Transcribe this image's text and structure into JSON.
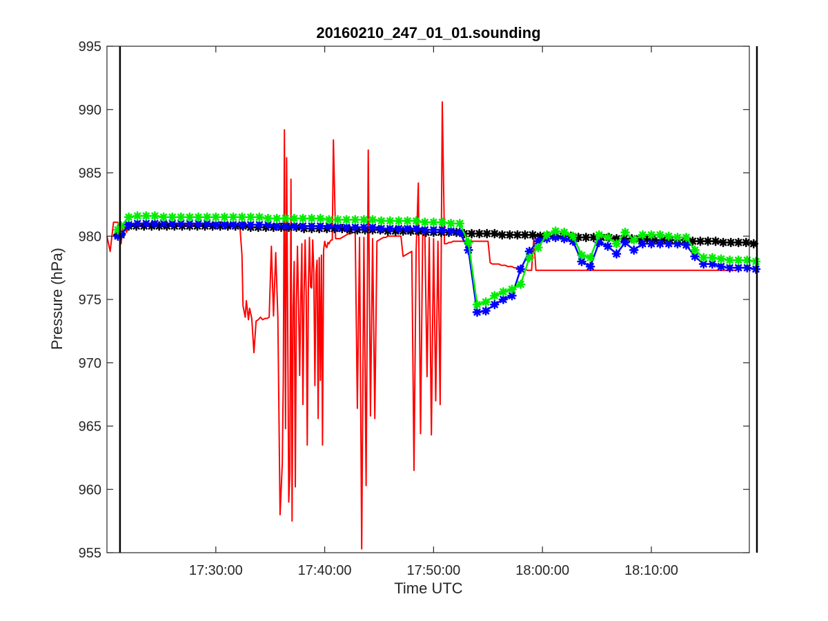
{
  "chart_data": {
    "type": "line",
    "title": "20160210_247_01_01.sounding",
    "xlabel": "Time UTC",
    "ylabel": "Pressure (hPa)",
    "xlim_min": [
      17,
      20.0
    ],
    "xlim_max": [
      18,
      19.0
    ],
    "ylim": [
      955,
      995
    ],
    "x_ticks": [
      "17:30:00",
      "17:40:00",
      "17:50:00",
      "18:00:00",
      "18:10:00"
    ],
    "x_tick_minutes": [
      1050,
      1060,
      1070,
      1080,
      1090
    ],
    "y_ticks": [
      955,
      960,
      965,
      970,
      975,
      980,
      985,
      990,
      995
    ],
    "vertical_markers_min": [
      1041.2,
      1099.7
    ],
    "grid": false,
    "colors": {
      "raw": "#ff0000",
      "ref": "#000000",
      "blue": "#0000ff",
      "green": "#00ee00",
      "axis": "#262626"
    },
    "series": [
      {
        "key": "ref",
        "x_min": [
          1041.0,
          1041.3,
          1042.0,
          1042.7,
          1043.4,
          1044.1,
          1044.8,
          1045.5,
          1046.2,
          1046.9,
          1047.6,
          1048.3,
          1049.0,
          1049.7,
          1050.4,
          1051.1,
          1051.8,
          1052.5,
          1053.2,
          1053.9,
          1054.6,
          1055.3,
          1056.0,
          1056.7,
          1057.4,
          1058.1,
          1058.8,
          1059.5,
          1060.2,
          1060.9,
          1061.6,
          1062.3,
          1063.0,
          1063.7,
          1064.4,
          1065.1,
          1065.8,
          1066.5,
          1067.2,
          1067.9,
          1068.6,
          1069.3,
          1070.0,
          1070.7,
          1071.4,
          1072.1,
          1072.8,
          1073.5,
          1074.2,
          1074.9,
          1075.6,
          1076.3,
          1077.0,
          1077.7,
          1078.4,
          1079.1,
          1079.8,
          1080.5,
          1081.2,
          1081.9,
          1082.6,
          1083.3,
          1084.0,
          1084.7,
          1085.4,
          1086.1,
          1086.8,
          1087.5,
          1088.2,
          1088.9,
          1089.6,
          1090.3,
          1091.0,
          1091.7,
          1092.4,
          1093.1,
          1093.8,
          1094.5,
          1095.2,
          1095.9,
          1096.6,
          1097.3,
          1098.0,
          1098.7,
          1099.4
        ],
        "y": [
          980.1,
          980.2,
          980.8,
          980.8,
          980.8,
          980.8,
          980.8,
          980.8,
          980.8,
          980.8,
          980.8,
          980.8,
          980.8,
          980.8,
          980.8,
          980.8,
          980.8,
          980.8,
          980.7,
          980.7,
          980.7,
          980.7,
          980.7,
          980.7,
          980.7,
          980.6,
          980.6,
          980.6,
          980.6,
          980.6,
          980.6,
          980.5,
          980.5,
          980.5,
          980.5,
          980.5,
          980.4,
          980.4,
          980.4,
          980.4,
          980.4,
          980.3,
          980.3,
          980.3,
          980.3,
          980.3,
          980.2,
          980.2,
          980.2,
          980.2,
          980.2,
          980.1,
          980.1,
          980.1,
          980.1,
          980.1,
          980.0,
          980.0,
          980.0,
          980.0,
          980.0,
          979.9,
          979.9,
          979.9,
          979.9,
          979.9,
          979.8,
          979.8,
          979.8,
          979.8,
          979.8,
          979.7,
          979.7,
          979.7,
          979.7,
          979.7,
          979.6,
          979.6,
          979.6,
          979.6,
          979.5,
          979.5,
          979.5,
          979.5,
          979.4
        ]
      },
      {
        "key": "blue",
        "x_min": [
          1041.0,
          1041.3,
          1042.0,
          1042.8,
          1043.6,
          1044.4,
          1045.2,
          1046.0,
          1046.8,
          1047.6,
          1048.4,
          1049.2,
          1050.0,
          1050.8,
          1051.6,
          1052.4,
          1053.2,
          1054.0,
          1054.8,
          1055.6,
          1056.4,
          1057.2,
          1058.0,
          1058.8,
          1059.6,
          1060.4,
          1061.2,
          1062.0,
          1062.8,
          1063.6,
          1064.4,
          1065.2,
          1066.0,
          1066.8,
          1067.6,
          1068.4,
          1069.2,
          1070.0,
          1070.8,
          1071.6,
          1072.4,
          1073.2,
          1074.0,
          1074.8,
          1075.6,
          1076.4,
          1077.2,
          1078.0,
          1078.8,
          1079.6,
          1080.4,
          1081.2,
          1082.0,
          1082.8,
          1083.6,
          1084.4,
          1085.2,
          1086.0,
          1086.8,
          1087.6,
          1088.4,
          1089.2,
          1090.0,
          1090.8,
          1091.6,
          1092.4,
          1093.2,
          1094.0,
          1094.8,
          1095.6,
          1096.4,
          1097.2,
          1098.0,
          1098.8,
          1099.6
        ],
        "y": [
          980.0,
          980.1,
          980.9,
          981.0,
          981.0,
          981.0,
          981.0,
          981.0,
          981.0,
          981.0,
          981.0,
          981.0,
          980.9,
          980.9,
          980.9,
          980.9,
          980.9,
          980.9,
          980.9,
          980.8,
          980.8,
          980.8,
          980.8,
          980.8,
          980.8,
          980.8,
          980.7,
          980.7,
          980.7,
          980.7,
          980.7,
          980.6,
          980.6,
          980.6,
          980.6,
          980.6,
          980.5,
          980.5,
          980.5,
          980.4,
          980.3,
          978.9,
          974.0,
          974.1,
          974.6,
          975.0,
          975.3,
          977.4,
          978.8,
          979.6,
          979.8,
          979.9,
          979.8,
          979.6,
          978.0,
          977.6,
          979.5,
          979.2,
          978.6,
          979.5,
          978.9,
          979.4,
          979.4,
          979.4,
          979.4,
          979.4,
          979.3,
          978.4,
          977.8,
          977.8,
          977.6,
          977.5,
          977.5,
          977.5,
          977.4
        ]
      },
      {
        "key": "green",
        "x_min": [
          1041.0,
          1041.3,
          1042.0,
          1042.8,
          1043.6,
          1044.4,
          1045.2,
          1046.0,
          1046.8,
          1047.6,
          1048.4,
          1049.2,
          1050.0,
          1050.8,
          1051.6,
          1052.4,
          1053.2,
          1054.0,
          1054.8,
          1055.6,
          1056.4,
          1057.2,
          1058.0,
          1058.8,
          1059.6,
          1060.4,
          1061.2,
          1062.0,
          1062.8,
          1063.6,
          1064.4,
          1065.2,
          1066.0,
          1066.8,
          1067.6,
          1068.4,
          1069.2,
          1070.0,
          1070.8,
          1071.6,
          1072.4,
          1073.2,
          1074.0,
          1074.8,
          1075.6,
          1076.4,
          1077.2,
          1078.0,
          1078.8,
          1079.6,
          1080.4,
          1081.2,
          1082.0,
          1082.8,
          1083.6,
          1084.4,
          1085.2,
          1086.0,
          1086.8,
          1087.6,
          1088.4,
          1089.2,
          1090.0,
          1090.8,
          1091.6,
          1092.4,
          1093.2,
          1094.0,
          1094.8,
          1095.6,
          1096.4,
          1097.2,
          1098.0,
          1098.8,
          1099.6
        ],
        "y": [
          980.5,
          980.8,
          981.5,
          981.6,
          981.6,
          981.6,
          981.5,
          981.5,
          981.5,
          981.5,
          981.5,
          981.5,
          981.5,
          981.5,
          981.5,
          981.5,
          981.5,
          981.5,
          981.4,
          981.4,
          981.4,
          981.4,
          981.4,
          981.4,
          981.4,
          981.3,
          981.3,
          981.3,
          981.3,
          981.3,
          981.3,
          981.2,
          981.2,
          981.2,
          981.2,
          981.2,
          981.1,
          981.1,
          981.1,
          981.0,
          981.0,
          979.5,
          974.6,
          974.8,
          975.3,
          975.6,
          975.8,
          976.2,
          978.3,
          979.1,
          980.1,
          980.4,
          980.3,
          980.0,
          978.5,
          978.3,
          980.1,
          979.9,
          979.4,
          980.3,
          979.7,
          980.1,
          980.1,
          980.1,
          980.0,
          979.9,
          979.9,
          978.9,
          978.3,
          978.3,
          978.2,
          978.1,
          978.1,
          978.1,
          978.0
        ]
      }
    ],
    "raw_series": {
      "key": "raw",
      "x_min": [
        1040.0,
        1040.3,
        1040.6,
        1041.0,
        1041.3,
        1041.5,
        1041.8,
        1042.0,
        1052.2,
        1052.4,
        1052.5,
        1052.7,
        1052.8,
        1053.0,
        1053.1,
        1053.3,
        1053.5,
        1053.7,
        1053.9,
        1054.1,
        1054.3,
        1054.5,
        1054.7,
        1054.9,
        1055.1,
        1055.3,
        1055.5,
        1055.7,
        1055.9,
        1056.1,
        1056.2,
        1056.3,
        1056.4,
        1056.5,
        1056.6,
        1056.7,
        1056.8,
        1056.9,
        1057.0,
        1057.1,
        1057.2,
        1057.3,
        1057.4,
        1057.5,
        1057.6,
        1057.7,
        1057.8,
        1057.9,
        1058.0,
        1058.1,
        1058.2,
        1058.3,
        1058.4,
        1058.5,
        1058.6,
        1058.7,
        1058.8,
        1058.9,
        1059.0,
        1059.1,
        1059.2,
        1059.3,
        1059.4,
        1059.5,
        1059.6,
        1059.7,
        1059.8,
        1059.9,
        1060.0,
        1060.1,
        1060.2,
        1060.3,
        1060.4,
        1060.5,
        1060.6,
        1060.7,
        1060.8,
        1061.0,
        1061.2,
        1061.4,
        1061.6,
        1061.8,
        1062.0,
        1062.2,
        1062.4,
        1062.6,
        1062.8,
        1063.0,
        1063.2,
        1063.4,
        1063.6,
        1063.8,
        1064.0,
        1064.2,
        1064.4,
        1064.6,
        1064.8,
        1065.0,
        1065.2,
        1065.4,
        1065.6,
        1065.8,
        1066.0,
        1066.2,
        1066.4,
        1066.6,
        1066.8,
        1067.0,
        1067.2,
        1067.4,
        1067.6,
        1067.8,
        1068.0,
        1068.2,
        1068.4,
        1068.6,
        1068.8,
        1069.0,
        1069.2,
        1069.4,
        1069.6,
        1069.8,
        1070.0,
        1070.2,
        1070.4,
        1070.6,
        1070.8,
        1071.0,
        1071.2,
        1071.4,
        1071.6,
        1071.8,
        1072.0,
        1072.2,
        1072.4,
        1072.6,
        1072.8,
        1073.0,
        1073.2,
        1073.4,
        1073.6,
        1073.8,
        1074.0,
        1074.2,
        1074.4,
        1074.6,
        1074.8,
        1075.0,
        1075.2,
        1075.4,
        1075.6,
        1075.8,
        1076.0,
        1076.2,
        1076.4,
        1076.6,
        1076.8,
        1077.0,
        1077.2,
        1077.4,
        1077.6,
        1077.8,
        1078.0,
        1078.2,
        1078.4,
        1078.6,
        1078.8,
        1079.0,
        1079.2,
        1079.4,
        1079.6,
        1079.8,
        1080.0,
        1080.2,
        1080.4,
        1080.6,
        1080.8,
        1081.0,
        1081.2,
        1081.4,
        1081.6,
        1081.8,
        1082.0,
        1082.2,
        1082.4,
        1082.6,
        1082.8,
        1083.0,
        1083.2,
        1083.4,
        1083.6,
        1083.8,
        1084.0,
        1084.2,
        1084.4,
        1084.6,
        1084.8,
        1085.0,
        1085.2,
        1085.4,
        1085.6,
        1085.8,
        1086.0,
        1086.2,
        1086.4,
        1086.6,
        1086.8,
        1087.0,
        1087.2,
        1087.4,
        1087.6,
        1087.8,
        1088.0,
        1088.2,
        1088.4,
        1088.6,
        1088.8,
        1089.0,
        1089.2,
        1089.4,
        1089.6,
        1089.8,
        1090.0,
        1090.2,
        1090.4,
        1090.6,
        1090.8,
        1091.0,
        1091.2,
        1091.4,
        1091.6,
        1091.8,
        1092.0,
        1092.2,
        1092.4,
        1092.6,
        1092.8,
        1093.0,
        1093.2,
        1093.4,
        1093.6,
        1093.8,
        1094.0,
        1094.2,
        1094.4,
        1094.6,
        1094.8,
        1095.0,
        1095.2,
        1095.4,
        1095.6,
        1095.8,
        1096.0,
        1096.2,
        1096.4,
        1096.6,
        1096.8,
        1097.0,
        1097.2,
        1097.4,
        1097.6,
        1097.8,
        1098.0,
        1098.2,
        1098.4,
        1098.6,
        1098.8,
        1099.0,
        1099.2,
        1099.4,
        1099.6,
        1099.8,
        1100.0
      ],
      "y": [
        980.0,
        978.8,
        981.1,
        981.1,
        979.4,
        981.0,
        980.3,
        980.9,
        980.9,
        978.5,
        974.5,
        973.6,
        974.9,
        973.4,
        974.3,
        973.5,
        970.8,
        973.3,
        973.4,
        973.6,
        973.4,
        973.5,
        973.5,
        973.6,
        979.2,
        973.7,
        978.7,
        973.6,
        958.0,
        962.0,
        968.8,
        988.4,
        964.8,
        986.2,
        973.8,
        959.0,
        961.3,
        984.5,
        957.5,
        974.3,
        978.0,
        960.2,
        974.6,
        979.2,
        974.7,
        969.0,
        975.0,
        979.4,
        966.7,
        975.2,
        979.7,
        975.4,
        963.5,
        975.8,
        979.9,
        976.0,
        975.9,
        979.7,
        977.2,
        968.2,
        977.0,
        978.1,
        965.6,
        978.3,
        968.6,
        978.5,
        963.5,
        978.9,
        979.6,
        979.2,
        979.1,
        979.5,
        979.4,
        979.6,
        979.7,
        979.7,
        987.6,
        979.8,
        979.8,
        979.8,
        979.9,
        980.0,
        980.1,
        980.2,
        980.2,
        980.3,
        980.3,
        966.4,
        979.9,
        955.3,
        979.9,
        960.3,
        986.8,
        965.8,
        979.8,
        965.6,
        979.6,
        979.7,
        979.8,
        979.9,
        979.9,
        980.0,
        980.0,
        980.0,
        980.0,
        980.0,
        980.0,
        980.0,
        978.4,
        978.5,
        978.6,
        978.7,
        978.8,
        961.5,
        978.9,
        984.2,
        964.4,
        980.2,
        980.0,
        968.9,
        979.9,
        964.3,
        979.8,
        967.0,
        979.6,
        966.7,
        990.6,
        979.4,
        979.4,
        979.5,
        979.5,
        979.6,
        979.6,
        979.6,
        979.6,
        979.6,
        979.6,
        979.6,
        978.7,
        979.6,
        979.6,
        979.6,
        979.6,
        979.6,
        979.6,
        979.6,
        979.6,
        979.6,
        977.9,
        977.8,
        977.8,
        977.8,
        977.8,
        977.7,
        977.7,
        977.7,
        977.6,
        977.6,
        977.6,
        977.5,
        977.5,
        977.5,
        977.4,
        977.4,
        977.4,
        977.3,
        977.3,
        977.3,
        979.8,
        977.3,
        977.3,
        977.3,
        977.3,
        977.3,
        977.3,
        977.3,
        977.3,
        977.3,
        977.3,
        977.3,
        977.3,
        977.3,
        977.3,
        977.3,
        977.3,
        977.3,
        977.3,
        977.3,
        977.3,
        977.3,
        977.3,
        977.3,
        977.3,
        977.3,
        977.3,
        977.3,
        977.3,
        977.3,
        977.3,
        977.3,
        977.3,
        977.3,
        977.3,
        977.3,
        977.3,
        977.3,
        977.3,
        977.3,
        977.3,
        977.3,
        977.3,
        977.3,
        977.3,
        977.3,
        977.3,
        977.3,
        977.3,
        977.3,
        977.3,
        977.3,
        977.3,
        977.3,
        977.3,
        977.3,
        977.3,
        977.3,
        977.3,
        977.3,
        977.3,
        977.3,
        977.3,
        977.3,
        977.3,
        977.3,
        977.3,
        977.3,
        977.3,
        977.3,
        977.3,
        977.3,
        977.3,
        977.3,
        977.3,
        977.3,
        977.3,
        977.3,
        977.3,
        977.3,
        977.3,
        977.3,
        977.3,
        977.3,
        977.3,
        977.3,
        977.3,
        977.3,
        977.3,
        977.3,
        977.3,
        977.3,
        977.3,
        977.3
      ]
    }
  }
}
